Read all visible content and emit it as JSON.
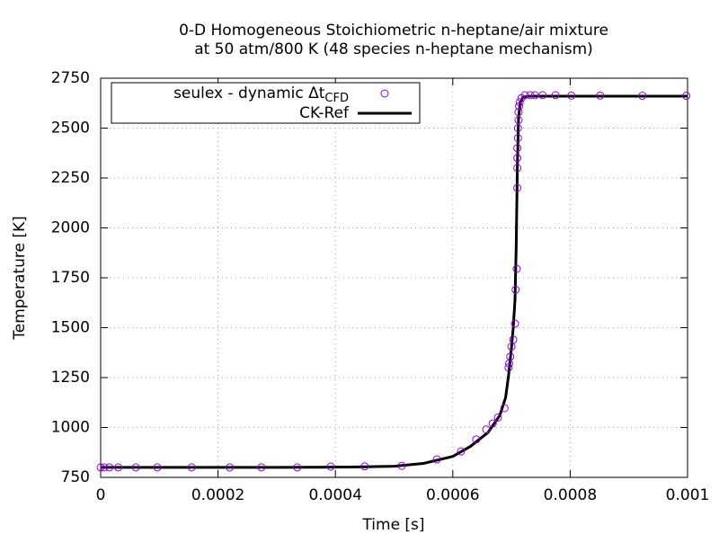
{
  "chart_data": {
    "type": "scatter-line",
    "title": "0-D Homogeneous Stoichiometric n-heptane/air mixture",
    "subtitle": "at 50 atm/800 K (48 species n-heptane mechanism)",
    "xlabel": "Time [s]",
    "ylabel": "Temperature [K]",
    "xlim": [
      0,
      0.001
    ],
    "xticks": [
      0,
      0.0002,
      0.0004,
      0.0006,
      0.0008,
      0.001
    ],
    "ylim": [
      750,
      2750
    ],
    "yticks": [
      750,
      1000,
      1250,
      1500,
      1750,
      2000,
      2250,
      2500,
      2750
    ],
    "grid": true,
    "legend": "top-left",
    "series": [
      {
        "name": "seulex - dynamic Δt",
        "name_sub": "CFD",
        "color": "#9400d3",
        "kind": "points",
        "x": [
          0,
          6e-06,
          1.5e-05,
          3e-05,
          6e-05,
          9.65e-05,
          0.000155,
          0.00022,
          0.000274,
          0.000335,
          0.000392,
          0.00045,
          0.000513,
          0.000573,
          0.000614,
          0.00064,
          0.000657,
          0.000668,
          0.000677,
          0.000688,
          0.000695,
          0.000696,
          0.000698,
          0.0007,
          0.000703,
          0.000706,
          0.000707,
          0.000709,
          0.00071,
          0.00071,
          0.00071,
          0.00071,
          0.000711,
          0.000711,
          0.000712,
          0.000712,
          0.000713,
          0.000714,
          0.000717,
          0.000723,
          0.000732,
          0.00074,
          0.000753,
          0.000775,
          0.000802,
          0.000851,
          0.000923,
          0.000998
        ],
        "values": [
          800,
          800,
          800,
          800,
          800,
          800,
          800,
          800,
          800,
          800,
          804,
          805,
          808,
          840,
          880,
          940,
          990,
          1020,
          1050,
          1097,
          1300,
          1320,
          1355,
          1405,
          1440,
          1520,
          1690,
          1795,
          2200,
          2300,
          2350,
          2400,
          2450,
          2500,
          2540,
          2580,
          2610,
          2630,
          2650,
          2665,
          2665,
          2665,
          2665,
          2665,
          2663,
          2663,
          2662,
          2662
        ]
      },
      {
        "name": "CK-Ref",
        "color": "#000000",
        "kind": "line",
        "x": [
          0,
          0.0001,
          0.0002,
          0.0003,
          0.0004,
          0.00045,
          0.0005,
          0.00055,
          0.0006,
          0.00063,
          0.00066,
          0.00068,
          0.00069,
          0.000695,
          0.0007,
          0.000703,
          0.000706,
          0.000708,
          0.00071,
          0.000712,
          0.000715,
          0.00072,
          0.00073,
          0.00075,
          0.0008,
          0.0009,
          0.001
        ],
        "values": [
          800,
          800,
          800,
          800,
          801,
          803,
          806,
          820,
          855,
          905,
          975,
          1060,
          1150,
          1260,
          1400,
          1500,
          1640,
          1900,
          2300,
          2550,
          2630,
          2655,
          2660,
          2660,
          2660,
          2660,
          2660
        ]
      }
    ]
  }
}
